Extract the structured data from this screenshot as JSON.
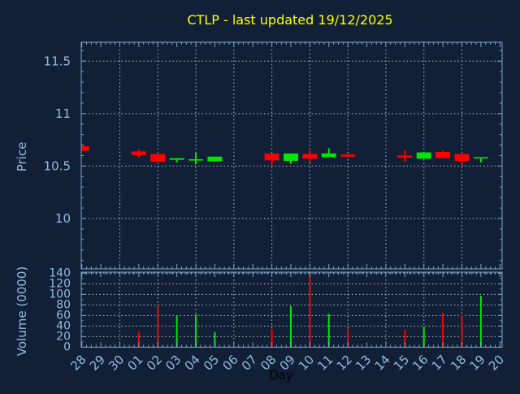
{
  "title": "CTLP - last updated 19/12/2025",
  "colors": {
    "background": "#112036",
    "axis": "#7fa6cc",
    "tick_text": "#93bce2",
    "grid": "#b9c2ca",
    "title": "#ffff00",
    "up": "#00e800",
    "down": "#ff0000",
    "xlabel_text": "#000000"
  },
  "chart_data": [
    {
      "type": "candlestick",
      "title": "CTLP - last updated 19/12/2025",
      "ylabel": "Price",
      "ylim": [
        9.52,
        11.68
      ],
      "yticks": [
        10,
        10.5,
        11,
        11.5
      ],
      "ytick_labels": [
        "10",
        "10.5",
        "11",
        "11.5"
      ],
      "x_categories": [
        "28",
        "29",
        "30",
        "01",
        "02",
        "03",
        "04",
        "05",
        "06",
        "07",
        "08",
        "09",
        "10",
        "11",
        "12",
        "13",
        "14",
        "15",
        "16",
        "17",
        "18",
        "19",
        "20"
      ],
      "grid": "dotted, vertical line every 2 days",
      "legend": "none",
      "candles": [
        {
          "day": "28",
          "open": 10.69,
          "high": 10.69,
          "low": 10.645,
          "close": 10.645,
          "direction": "down"
        },
        {
          "day": "01",
          "open": 10.64,
          "high": 10.66,
          "low": 10.58,
          "close": 10.605,
          "direction": "down"
        },
        {
          "day": "02",
          "open": 10.615,
          "high": 10.615,
          "low": 10.54,
          "close": 10.54,
          "direction": "down"
        },
        {
          "day": "03",
          "open": 10.56,
          "high": 10.575,
          "low": 10.535,
          "close": 10.575,
          "direction": "up"
        },
        {
          "day": "04",
          "open": 10.555,
          "high": 10.625,
          "low": 10.515,
          "close": 10.565,
          "direction": "up"
        },
        {
          "day": "05",
          "open": 10.545,
          "high": 10.59,
          "low": 10.545,
          "close": 10.59,
          "direction": "up"
        },
        {
          "day": "08",
          "open": 10.62,
          "high": 10.62,
          "low": 10.51,
          "close": 10.555,
          "direction": "down"
        },
        {
          "day": "09",
          "open": 10.55,
          "high": 10.62,
          "low": 10.52,
          "close": 10.62,
          "direction": "up"
        },
        {
          "day": "10",
          "open": 10.615,
          "high": 10.65,
          "low": 10.53,
          "close": 10.57,
          "direction": "down"
        },
        {
          "day": "11",
          "open": 10.585,
          "high": 10.67,
          "low": 10.585,
          "close": 10.62,
          "direction": "up"
        },
        {
          "day": "12",
          "open": 10.61,
          "high": 10.62,
          "low": 10.58,
          "close": 10.59,
          "direction": "down"
        },
        {
          "day": "15",
          "open": 10.6,
          "high": 10.65,
          "low": 10.545,
          "close": 10.58,
          "direction": "down"
        },
        {
          "day": "16",
          "open": 10.57,
          "high": 10.63,
          "low": 10.57,
          "close": 10.63,
          "direction": "up"
        },
        {
          "day": "17",
          "open": 10.635,
          "high": 10.645,
          "low": 10.575,
          "close": 10.575,
          "direction": "down"
        },
        {
          "day": "18",
          "open": 10.615,
          "high": 10.615,
          "low": 10.5,
          "close": 10.55,
          "direction": "down"
        },
        {
          "day": "19",
          "open": 10.575,
          "high": 10.585,
          "low": 10.535,
          "close": 10.585,
          "direction": "up"
        }
      ]
    },
    {
      "type": "bar",
      "ylabel": "Volume (0000)",
      "xlabel": "Day",
      "ylim": [
        0,
        142
      ],
      "yticks": [
        0,
        20,
        40,
        60,
        80,
        100,
        120,
        140
      ],
      "x_categories": [
        "28",
        "29",
        "30",
        "01",
        "02",
        "03",
        "04",
        "05",
        "06",
        "07",
        "08",
        "09",
        "10",
        "11",
        "12",
        "13",
        "14",
        "15",
        "16",
        "17",
        "18",
        "19",
        "20"
      ],
      "bars": [
        {
          "day": "01",
          "value": 29,
          "direction": "down"
        },
        {
          "day": "02",
          "value": 80,
          "direction": "down"
        },
        {
          "day": "03",
          "value": 59,
          "direction": "up"
        },
        {
          "day": "04",
          "value": 62,
          "direction": "up"
        },
        {
          "day": "05",
          "value": 29,
          "direction": "up"
        },
        {
          "day": "08",
          "value": 34,
          "direction": "down"
        },
        {
          "day": "09",
          "value": 78,
          "direction": "up"
        },
        {
          "day": "10",
          "value": 140,
          "direction": "down"
        },
        {
          "day": "11",
          "value": 63,
          "direction": "up"
        },
        {
          "day": "12",
          "value": 35,
          "direction": "down"
        },
        {
          "day": "15",
          "value": 33,
          "direction": "down"
        },
        {
          "day": "16",
          "value": 39,
          "direction": "up"
        },
        {
          "day": "17",
          "value": 65,
          "direction": "down"
        },
        {
          "day": "18",
          "value": 61,
          "direction": "down"
        },
        {
          "day": "19",
          "value": 97,
          "direction": "up"
        }
      ]
    }
  ]
}
